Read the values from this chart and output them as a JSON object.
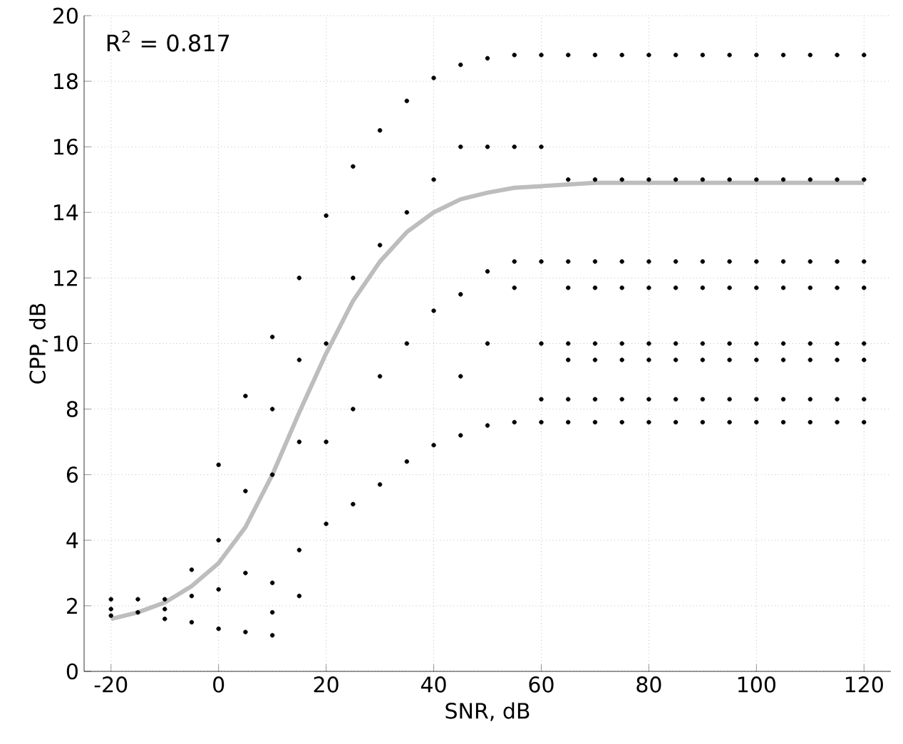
{
  "chart_data": {
    "type": "scatter",
    "xlabel": "SNR, dB",
    "ylabel": "CPP, dB",
    "annotations": [
      "R$^{2}$ = 0.817"
    ],
    "xlim": [
      -25,
      125
    ],
    "ylim": [
      0,
      20
    ],
    "xticks": [
      -20,
      0,
      20,
      40,
      60,
      80,
      100,
      120
    ],
    "yticks": [
      0,
      2,
      4,
      6,
      8,
      10,
      12,
      14,
      16,
      18,
      20
    ],
    "grid": true,
    "series": [
      {
        "marker": "circle",
        "color": "#000000",
        "x": [
          -20,
          -20,
          -20,
          -15,
          -15,
          -10,
          -10,
          -10,
          -5,
          -5,
          -5,
          0,
          0,
          0,
          0,
          5,
          5,
          5,
          5,
          10,
          10,
          10,
          10,
          10,
          10,
          15,
          15,
          15,
          15,
          15,
          20,
          20,
          20,
          20,
          25,
          25,
          25,
          25,
          30,
          30,
          30,
          30,
          35,
          35,
          35,
          35,
          40,
          40,
          40,
          40,
          45,
          45,
          45,
          45,
          45,
          50,
          50,
          50,
          50,
          50,
          55,
          55,
          55,
          55,
          55,
          60,
          60,
          60,
          60,
          60,
          60,
          65,
          65,
          65,
          65,
          65,
          65,
          65,
          65,
          70,
          70,
          70,
          70,
          70,
          70,
          70,
          70,
          75,
          75,
          75,
          75,
          75,
          75,
          75,
          75,
          80,
          80,
          80,
          80,
          80,
          80,
          80,
          80,
          85,
          85,
          85,
          85,
          85,
          85,
          85,
          85,
          90,
          90,
          90,
          90,
          90,
          90,
          90,
          90,
          95,
          95,
          95,
          95,
          95,
          95,
          95,
          95,
          100,
          100,
          100,
          100,
          100,
          100,
          100,
          100,
          105,
          105,
          105,
          105,
          105,
          105,
          105,
          105,
          110,
          110,
          110,
          110,
          110,
          110,
          110,
          110,
          115,
          115,
          115,
          115,
          115,
          115,
          115,
          115,
          120,
          120,
          120,
          120,
          120,
          120,
          120,
          120
        ],
        "values": [
          1.7,
          1.9,
          2.2,
          1.8,
          2.2,
          1.6,
          1.9,
          2.2,
          1.5,
          2.3,
          3.1,
          1.3,
          2.5,
          4.0,
          6.3,
          1.2,
          3.0,
          5.5,
          8.4,
          1.1,
          1.8,
          2.7,
          6.0,
          8.0,
          10.2,
          2.3,
          3.7,
          7.0,
          9.5,
          12.0,
          4.5,
          7.0,
          10.0,
          13.9,
          5.1,
          8.0,
          12.0,
          15.4,
          5.7,
          9.0,
          13.0,
          16.5,
          6.4,
          10.0,
          14.0,
          17.4,
          6.9,
          11.0,
          15.0,
          18.1,
          7.2,
          9.0,
          11.5,
          16.0,
          18.5,
          7.5,
          10.0,
          12.2,
          16.0,
          18.7,
          7.6,
          11.7,
          12.5,
          16.0,
          18.8,
          7.6,
          8.3,
          10.0,
          12.5,
          16.0,
          18.8,
          7.6,
          8.3,
          9.5,
          10.0,
          11.7,
          12.5,
          15.0,
          18.8,
          7.6,
          8.3,
          9.5,
          10.0,
          11.7,
          12.5,
          15.0,
          18.8,
          7.6,
          8.3,
          9.5,
          10.0,
          11.7,
          12.5,
          15.0,
          18.8,
          7.6,
          8.3,
          9.5,
          10.0,
          11.7,
          12.5,
          15.0,
          18.8,
          7.6,
          8.3,
          9.5,
          10.0,
          11.7,
          12.5,
          15.0,
          18.8,
          7.6,
          8.3,
          9.5,
          10.0,
          11.7,
          12.5,
          15.0,
          18.8,
          7.6,
          8.3,
          9.5,
          10.0,
          11.7,
          12.5,
          15.0,
          18.8,
          7.6,
          8.3,
          9.5,
          10.0,
          11.7,
          12.5,
          15.0,
          18.8,
          7.6,
          8.3,
          9.5,
          10.0,
          11.7,
          12.5,
          15.0,
          18.8,
          7.6,
          8.3,
          9.5,
          10.0,
          11.7,
          12.5,
          15.0,
          18.8,
          7.6,
          8.3,
          9.5,
          10.0,
          11.7,
          12.5,
          15.0,
          18.8,
          7.6,
          8.3,
          9.5,
          10.0,
          11.7,
          12.5,
          15.0,
          18.8
        ]
      },
      {
        "type": "line",
        "marker": "none",
        "color": "#bdbdbd",
        "x": [
          -20,
          -15,
          -10,
          -5,
          0,
          5,
          10,
          15,
          20,
          25,
          30,
          35,
          40,
          45,
          50,
          55,
          60,
          70,
          80,
          120
        ],
        "values": [
          1.6,
          1.8,
          2.1,
          2.6,
          3.3,
          4.4,
          6.0,
          7.9,
          9.7,
          11.3,
          12.5,
          13.4,
          14.0,
          14.4,
          14.6,
          14.75,
          14.8,
          14.9,
          14.9,
          14.9
        ]
      }
    ]
  }
}
